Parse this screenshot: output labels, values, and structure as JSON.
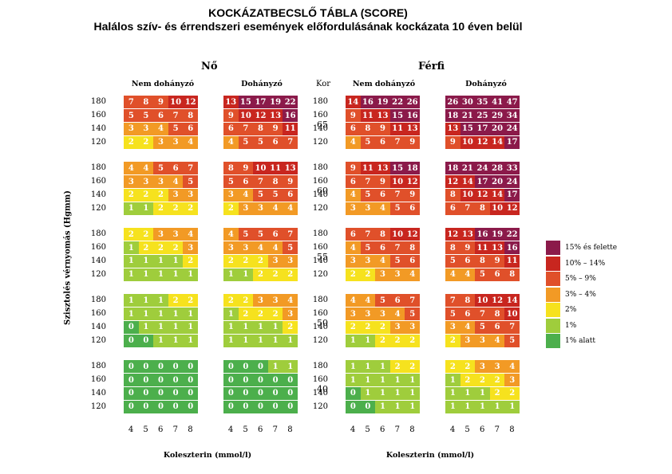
{
  "title": "KOCKÁZATBECSLŐ TÁBLA (SCORE)",
  "subtitle": "Halálos szív- és érrendszeri események előfordulásának kockázata 10 éven belül",
  "chart_data": {
    "type": "heatmap",
    "title": "KOCKÁZATBECSLŐ TÁBLA (SCORE)",
    "subtitle": "Halálos szív- és érrendszeri események előfordulásának kockázata 10 éven belül",
    "ylabel": "Szisztolés vérnyomás (Hgmm)",
    "xlabel": "Koleszterin (mmol/l)",
    "age_header": "Kor",
    "cholesterol_ticks": [
      "4",
      "5",
      "6",
      "7",
      "8"
    ],
    "bp_ticks": [
      "180",
      "160",
      "140",
      "120"
    ],
    "ages": [
      "65",
      "60",
      "55",
      "50",
      "40"
    ],
    "groups": [
      {
        "gender": "Nő",
        "smoking": "Nem dohányzó",
        "values": [
          [
            [
              7,
              8,
              9,
              10,
              12
            ],
            [
              5,
              5,
              6,
              7,
              8
            ],
            [
              3,
              3,
              4,
              5,
              6
            ],
            [
              2,
              2,
              3,
              3,
              4
            ]
          ],
          [
            [
              4,
              4,
              5,
              6,
              7
            ],
            [
              3,
              3,
              3,
              4,
              5
            ],
            [
              2,
              2,
              2,
              3,
              3
            ],
            [
              1,
              1,
              2,
              2,
              2
            ]
          ],
          [
            [
              2,
              2,
              3,
              3,
              4
            ],
            [
              1,
              2,
              2,
              2,
              3
            ],
            [
              1,
              1,
              1,
              1,
              2
            ],
            [
              1,
              1,
              1,
              1,
              1
            ]
          ],
          [
            [
              1,
              1,
              1,
              2,
              2
            ],
            [
              1,
              1,
              1,
              1,
              1
            ],
            [
              0,
              1,
              1,
              1,
              1
            ],
            [
              0,
              0,
              1,
              1,
              1
            ]
          ],
          [
            [
              0,
              0,
              0,
              0,
              0
            ],
            [
              0,
              0,
              0,
              0,
              0
            ],
            [
              0,
              0,
              0,
              0,
              0
            ],
            [
              0,
              0,
              0,
              0,
              0
            ]
          ]
        ]
      },
      {
        "gender": "Nő",
        "smoking": "Dohányzó",
        "values": [
          [
            [
              13,
              15,
              17,
              19,
              22
            ],
            [
              9,
              10,
              12,
              13,
              16
            ],
            [
              6,
              7,
              8,
              9,
              11
            ],
            [
              4,
              5,
              5,
              6,
              7
            ]
          ],
          [
            [
              8,
              9,
              10,
              11,
              13
            ],
            [
              5,
              6,
              7,
              8,
              9
            ],
            [
              3,
              4,
              5,
              5,
              6
            ],
            [
              2,
              3,
              3,
              4,
              4
            ]
          ],
          [
            [
              4,
              5,
              5,
              6,
              7
            ],
            [
              3,
              3,
              4,
              4,
              5
            ],
            [
              2,
              2,
              2,
              3,
              3
            ],
            [
              1,
              1,
              2,
              2,
              2
            ]
          ],
          [
            [
              2,
              2,
              3,
              3,
              4
            ],
            [
              1,
              2,
              2,
              2,
              3
            ],
            [
              1,
              1,
              1,
              1,
              2
            ],
            [
              1,
              1,
              1,
              1,
              1
            ]
          ],
          [
            [
              0,
              0,
              0,
              1,
              1
            ],
            [
              0,
              0,
              0,
              0,
              0
            ],
            [
              0,
              0,
              0,
              0,
              0
            ],
            [
              0,
              0,
              0,
              0,
              0
            ]
          ]
        ]
      },
      {
        "gender": "Férfi",
        "smoking": "Nem dohányzó",
        "values": [
          [
            [
              14,
              16,
              19,
              22,
              26
            ],
            [
              9,
              11,
              13,
              15,
              16
            ],
            [
              6,
              8,
              9,
              11,
              13
            ],
            [
              4,
              5,
              6,
              7,
              9
            ]
          ],
          [
            [
              9,
              11,
              13,
              15,
              18
            ],
            [
              6,
              7,
              9,
              10,
              12
            ],
            [
              4,
              5,
              6,
              7,
              9
            ],
            [
              3,
              3,
              4,
              5,
              6
            ]
          ],
          [
            [
              6,
              7,
              8,
              10,
              12
            ],
            [
              4,
              5,
              6,
              7,
              8
            ],
            [
              3,
              3,
              4,
              5,
              6
            ],
            [
              2,
              2,
              3,
              3,
              4
            ]
          ],
          [
            [
              4,
              4,
              5,
              6,
              7
            ],
            [
              3,
              3,
              3,
              4,
              5
            ],
            [
              2,
              2,
              2,
              3,
              3
            ],
            [
              1,
              1,
              2,
              2,
              2
            ]
          ],
          [
            [
              1,
              1,
              1,
              2,
              2
            ],
            [
              1,
              1,
              1,
              1,
              1
            ],
            [
              0,
              1,
              1,
              1,
              1
            ],
            [
              0,
              0,
              1,
              1,
              1
            ]
          ]
        ]
      },
      {
        "gender": "Férfi",
        "smoking": "Dohányzó",
        "values": [
          [
            [
              26,
              30,
              35,
              41,
              47
            ],
            [
              18,
              21,
              25,
              29,
              34
            ],
            [
              13,
              15,
              17,
              20,
              24
            ],
            [
              9,
              10,
              12,
              14,
              17
            ]
          ],
          [
            [
              18,
              21,
              24,
              28,
              33
            ],
            [
              12,
              14,
              17,
              20,
              24
            ],
            [
              8,
              10,
              12,
              14,
              17
            ],
            [
              6,
              7,
              8,
              10,
              12
            ]
          ],
          [
            [
              12,
              13,
              16,
              19,
              22
            ],
            [
              8,
              9,
              11,
              13,
              16
            ],
            [
              5,
              6,
              8,
              9,
              11
            ],
            [
              4,
              4,
              5,
              6,
              8
            ]
          ],
          [
            [
              7,
              8,
              10,
              12,
              14
            ],
            [
              5,
              6,
              7,
              8,
              10
            ],
            [
              3,
              4,
              5,
              6,
              7
            ],
            [
              2,
              3,
              3,
              4,
              5
            ]
          ],
          [
            [
              2,
              2,
              3,
              3,
              4
            ],
            [
              1,
              2,
              2,
              2,
              3
            ],
            [
              1,
              1,
              1,
              2,
              2
            ],
            [
              1,
              1,
              1,
              1,
              1
            ]
          ]
        ]
      }
    ],
    "legend": [
      {
        "label": "15% és felette",
        "color": "#8b1a4a"
      },
      {
        "label": "10% – 14%",
        "color": "#c8261f"
      },
      {
        "label": "5% – 9%",
        "color": "#e0502a"
      },
      {
        "label": "3% – 4%",
        "color": "#f29a25"
      },
      {
        "label": "2%",
        "color": "#f6e21e"
      },
      {
        "label": "1%",
        "color": "#9fcd3c"
      },
      {
        "label": "1% alatt",
        "color": "#4caf4c"
      }
    ]
  }
}
